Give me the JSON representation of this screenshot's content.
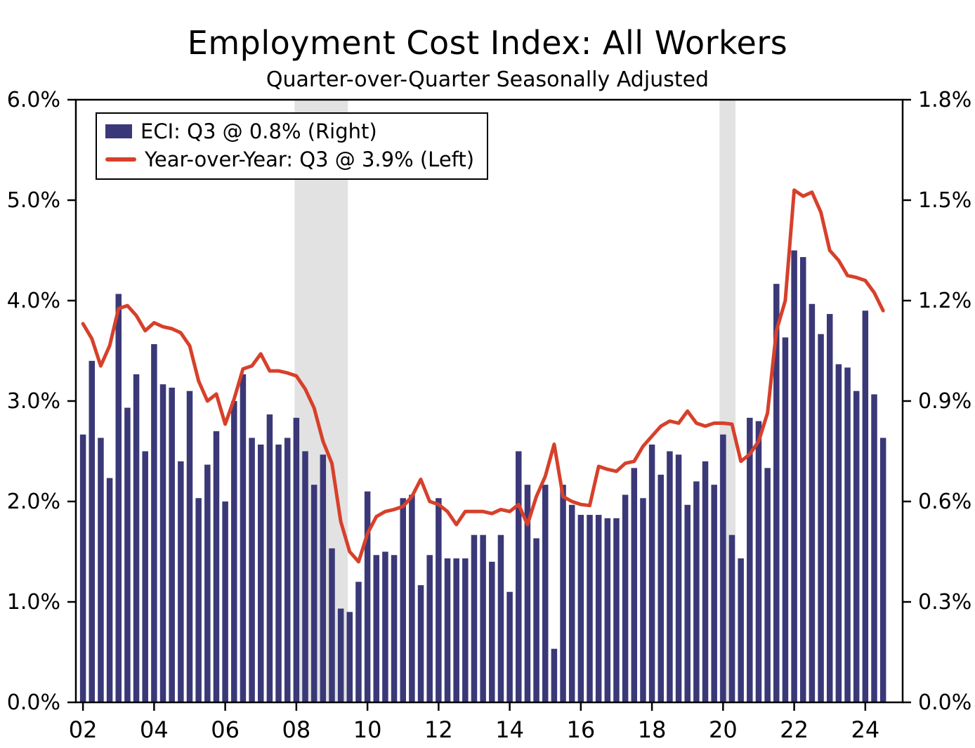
{
  "title": "Employment Cost Index: All Workers",
  "subtitle": "Quarter-over-Quarter Seasonally Adjusted",
  "legend": {
    "items": [
      {
        "label": "ECI: Q3 @ 0.8% (Right)",
        "marker": "bar",
        "color": "#3b3878"
      },
      {
        "label": "Year-over-Year: Q3 @ 3.9% (Left)",
        "marker": "line",
        "color": "#d7402b"
      }
    ]
  },
  "colors": {
    "bar": "#3b3878",
    "line": "#d7402b",
    "recession_band": "#e2e2e2",
    "axis": "#000000"
  },
  "chart_data": {
    "type": "bar+line",
    "x_start": "2002Q1",
    "x_end": "2024Q3",
    "x_step": "quarter",
    "series": [
      {
        "name": "ECI quarter-over-quarter (bars, right axis, %)",
        "type": "bar",
        "axis": "right",
        "color": "#3b3878",
        "values": [
          0.8,
          1.02,
          0.79,
          0.67,
          1.22,
          0.88,
          0.98,
          0.75,
          1.07,
          0.95,
          0.94,
          0.72,
          0.93,
          0.61,
          0.71,
          0.81,
          0.6,
          0.9,
          0.98,
          0.79,
          0.77,
          0.86,
          0.77,
          0.79,
          0.85,
          0.75,
          0.65,
          0.74,
          0.46,
          0.28,
          0.27,
          0.36,
          0.63,
          0.44,
          0.45,
          0.44,
          0.61,
          0.62,
          0.35,
          0.44,
          0.61,
          0.43,
          0.43,
          0.43,
          0.5,
          0.5,
          0.42,
          0.5,
          0.33,
          0.75,
          0.65,
          0.49,
          0.65,
          0.16,
          0.65,
          0.59,
          0.56,
          0.56,
          0.56,
          0.55,
          0.55,
          0.62,
          0.7,
          0.61,
          0.77,
          0.68,
          0.75,
          0.74,
          0.59,
          0.66,
          0.72,
          0.65,
          0.8,
          0.5,
          0.43,
          0.85,
          0.84,
          0.7,
          1.25,
          1.09,
          1.35,
          1.33,
          1.19,
          1.1,
          1.16,
          1.01,
          1.0,
          0.93,
          1.17,
          0.92,
          0.79
        ]
      },
      {
        "name": "Year-over-Year (line, left axis, %)",
        "type": "line",
        "axis": "left",
        "color": "#d7402b",
        "values": [
          3.77,
          3.62,
          3.35,
          3.55,
          3.92,
          3.95,
          3.85,
          3.7,
          3.78,
          3.74,
          3.72,
          3.68,
          3.55,
          3.2,
          3.0,
          3.07,
          2.77,
          3.02,
          3.32,
          3.35,
          3.47,
          3.3,
          3.3,
          3.28,
          3.25,
          3.12,
          2.93,
          2.6,
          2.38,
          1.8,
          1.5,
          1.4,
          1.68,
          1.85,
          1.9,
          1.92,
          1.95,
          2.05,
          2.22,
          2.0,
          1.97,
          1.9,
          1.77,
          1.9,
          1.9,
          1.9,
          1.88,
          1.92,
          1.9,
          1.97,
          1.77,
          2.05,
          2.25,
          2.57,
          2.05,
          2.0,
          1.97,
          1.96,
          2.35,
          2.32,
          2.3,
          2.38,
          2.4,
          2.55,
          2.65,
          2.75,
          2.8,
          2.78,
          2.9,
          2.78,
          2.75,
          2.78,
          2.78,
          2.77,
          2.4,
          2.47,
          2.6,
          2.88,
          3.7,
          4.0,
          5.1,
          5.04,
          5.08,
          4.88,
          4.5,
          4.4,
          4.25,
          4.23,
          4.2,
          4.08,
          3.9
        ]
      }
    ],
    "left_axis": {
      "min": 0,
      "max": 6,
      "tick_values": [
        0,
        1,
        2,
        3,
        4,
        5,
        6
      ],
      "tick_labels": [
        "0.0%",
        "1.0%",
        "2.0%",
        "3.0%",
        "4.0%",
        "5.0%",
        "6.0%"
      ]
    },
    "right_axis": {
      "min": 0,
      "max": 1.8,
      "tick_values": [
        0,
        0.3,
        0.6,
        0.9,
        1.2,
        1.5,
        1.8
      ],
      "tick_labels": [
        "0.0%",
        "0.3%",
        "0.6%",
        "0.9%",
        "1.2%",
        "1.5%",
        "1.8%"
      ]
    },
    "x_axis": {
      "tick_values": [
        2002,
        2004,
        2006,
        2008,
        2010,
        2012,
        2014,
        2016,
        2018,
        2020,
        2022,
        2024
      ],
      "tick_labels": [
        "02",
        "04",
        "06",
        "08",
        "10",
        "12",
        "14",
        "16",
        "18",
        "20",
        "22",
        "24"
      ]
    },
    "recession_bands": [
      {
        "start": 2007.95,
        "end": 2009.45
      },
      {
        "start": 2019.9,
        "end": 2020.35
      }
    ],
    "grid": false,
    "legend_position": "top-left-inside"
  }
}
